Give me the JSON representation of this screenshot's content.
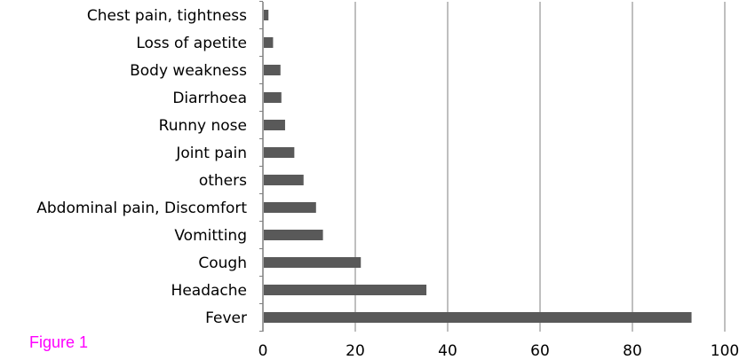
{
  "caption": "Figure 1",
  "colors": {
    "bar": "#595959",
    "grid": "#bfbfbf",
    "axis": "#7f7f7f",
    "caption": "#ff00ff"
  },
  "chart_data": {
    "type": "bar",
    "orientation": "horizontal",
    "categories": [
      "Chest pain, tightness",
      "Loss of apetite",
      "Body weakness",
      "Diarrhoea",
      "Runny nose",
      "Joint pain",
      "others",
      "Abdominal pain, Discomfort",
      "Vomitting",
      "Cough",
      "Headache",
      "Fever"
    ],
    "values": [
      1.2,
      2.2,
      3.8,
      4.0,
      4.8,
      6.8,
      8.8,
      11.5,
      13.0,
      21.2,
      35.4,
      92.8
    ],
    "xlim": [
      0,
      100
    ],
    "xticks": [
      0,
      20,
      40,
      60,
      80,
      100
    ],
    "grid": true,
    "title": "",
    "xlabel": "",
    "ylabel": ""
  }
}
